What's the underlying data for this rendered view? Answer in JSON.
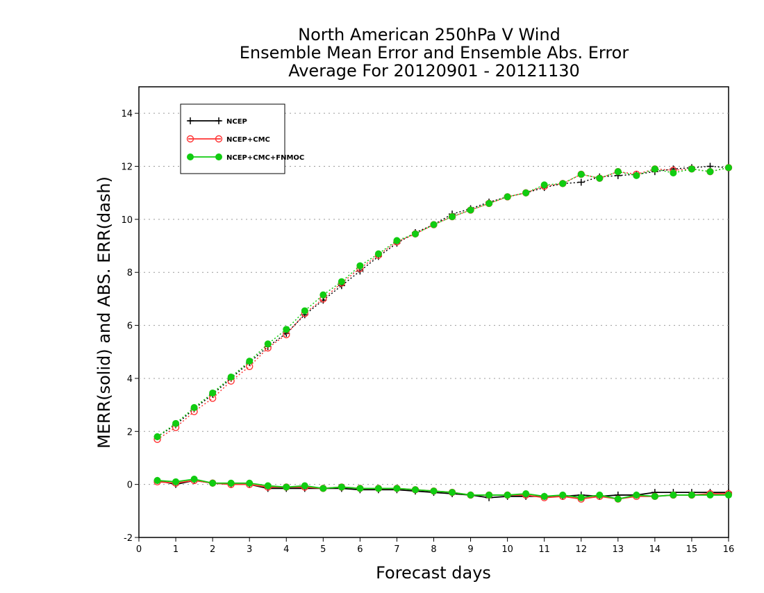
{
  "chart_data": {
    "type": "line",
    "title": [
      "North American 250hPa V Wind",
      "Ensemble Mean Error and Ensemble Abs. Error",
      "Average For 20120901 - 20121130"
    ],
    "xlabel": "Forecast days",
    "ylabel": "MERR(solid) and ABS. ERR(dash)",
    "xlim": [
      0,
      16
    ],
    "ylim": [
      -2,
      15
    ],
    "xticks": [
      "0",
      "1",
      "2",
      "3",
      "4",
      "5",
      "6",
      "7",
      "8",
      "9",
      "10",
      "11",
      "12",
      "13",
      "14",
      "15",
      "16"
    ],
    "yticks": [
      "-2",
      "0",
      "2",
      "4",
      "6",
      "8",
      "10",
      "12",
      "14"
    ],
    "grid": "horizontal dotted",
    "legend_position": "top-left",
    "x": [
      0.5,
      1,
      1.5,
      2,
      2.5,
      3,
      3.5,
      4,
      4.5,
      5,
      5.5,
      6,
      6.5,
      7,
      7.5,
      8,
      8.5,
      9,
      9.5,
      10,
      10.5,
      11,
      11.5,
      12,
      12.5,
      13,
      13.5,
      14,
      14.5,
      15,
      15.5,
      16
    ],
    "series": [
      {
        "name": "NCEP",
        "color": "#000000",
        "marker": "plus",
        "abs_err": [
          1.8,
          2.25,
          2.85,
          3.4,
          4.0,
          4.6,
          5.2,
          5.7,
          6.4,
          6.95,
          7.5,
          8.05,
          8.6,
          9.1,
          9.5,
          9.8,
          10.2,
          10.4,
          10.65,
          10.85,
          11.0,
          11.2,
          11.35,
          11.4,
          11.6,
          11.65,
          11.7,
          11.8,
          11.9,
          11.95,
          12.0,
          11.95
        ],
        "mean_err": [
          0.15,
          0.0,
          0.15,
          0.05,
          0.0,
          0.0,
          -0.15,
          -0.15,
          -0.15,
          -0.15,
          -0.15,
          -0.2,
          -0.2,
          -0.2,
          -0.25,
          -0.3,
          -0.35,
          -0.4,
          -0.5,
          -0.45,
          -0.45,
          -0.45,
          -0.45,
          -0.4,
          -0.45,
          -0.4,
          -0.4,
          -0.3,
          -0.3,
          -0.3,
          -0.3,
          -0.3
        ]
      },
      {
        "name": "NCEP+CMC",
        "color": "#ff3333",
        "marker": "circle",
        "abs_err": [
          1.7,
          2.15,
          2.75,
          3.25,
          3.9,
          4.45,
          5.15,
          5.65,
          6.45,
          7.0,
          7.6,
          8.15,
          8.65,
          9.15,
          9.45,
          9.8,
          10.1,
          10.35,
          10.6,
          10.85,
          11.0,
          11.25,
          11.35,
          11.7,
          11.55,
          11.8,
          11.7,
          11.9,
          11.85,
          11.9,
          11.8,
          11.95
        ],
        "mean_err": [
          0.1,
          0.05,
          0.15,
          0.05,
          0.0,
          0.0,
          -0.1,
          -0.1,
          -0.1,
          -0.15,
          -0.1,
          -0.15,
          -0.15,
          -0.15,
          -0.2,
          -0.25,
          -0.3,
          -0.4,
          -0.4,
          -0.4,
          -0.4,
          -0.5,
          -0.45,
          -0.55,
          -0.45,
          -0.55,
          -0.45,
          -0.45,
          -0.4,
          -0.4,
          -0.35,
          -0.35
        ]
      },
      {
        "name": "NCEP+CMC+FNMOC",
        "color": "#11cc11",
        "marker": "filled-circle",
        "abs_err": [
          1.8,
          2.3,
          2.9,
          3.45,
          4.05,
          4.65,
          5.3,
          5.85,
          6.55,
          7.15,
          7.65,
          8.25,
          8.7,
          9.2,
          9.45,
          9.8,
          10.1,
          10.35,
          10.6,
          10.85,
          11.0,
          11.3,
          11.35,
          11.7,
          11.55,
          11.8,
          11.65,
          11.9,
          11.75,
          11.9,
          11.8,
          11.95
        ],
        "mean_err": [
          0.15,
          0.1,
          0.2,
          0.05,
          0.05,
          0.05,
          -0.05,
          -0.1,
          -0.05,
          -0.15,
          -0.1,
          -0.15,
          -0.15,
          -0.15,
          -0.2,
          -0.25,
          -0.3,
          -0.4,
          -0.4,
          -0.4,
          -0.35,
          -0.45,
          -0.4,
          -0.5,
          -0.4,
          -0.55,
          -0.4,
          -0.45,
          -0.4,
          -0.4,
          -0.4,
          -0.4
        ]
      }
    ]
  }
}
